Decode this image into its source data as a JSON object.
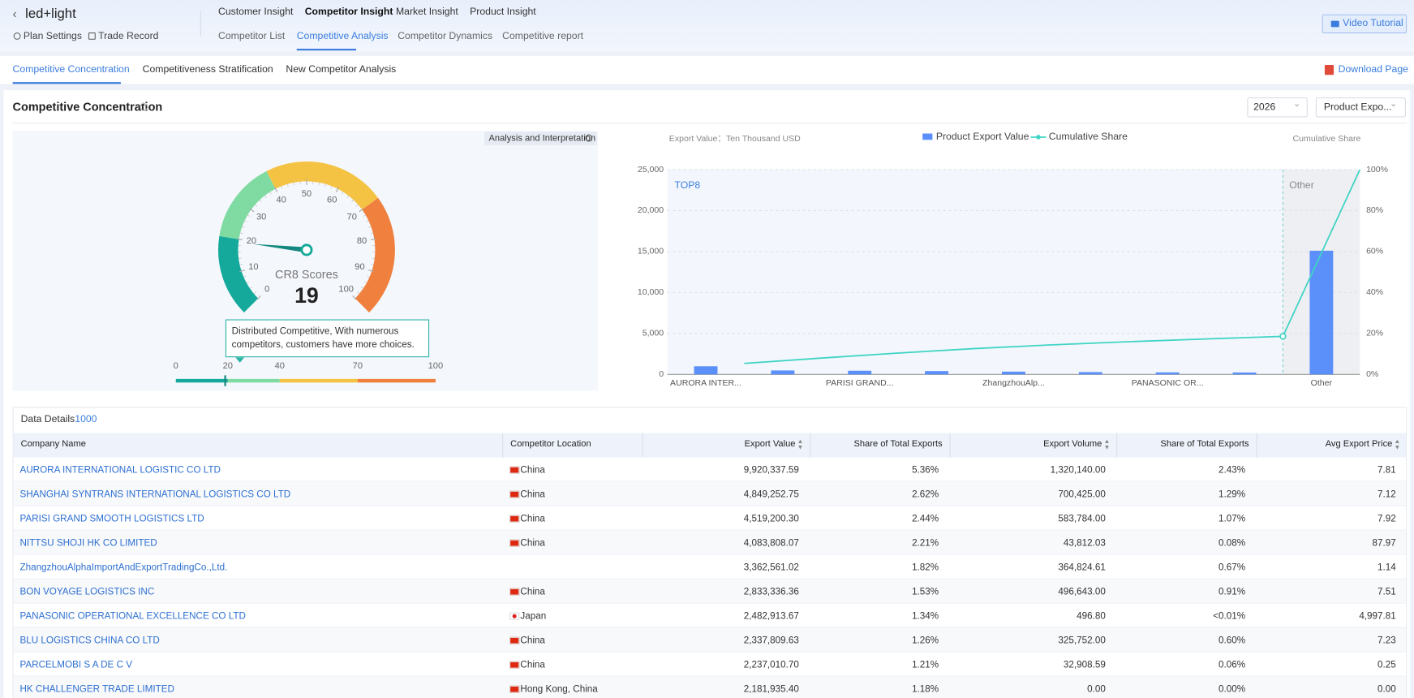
{
  "header": {
    "title": "led+light",
    "links": [
      "Plan Settings",
      "Trade Record"
    ],
    "nav": [
      "Customer Insight",
      "Competitor Insight",
      "Market Insight",
      "Product Insight"
    ],
    "subnav": [
      "Competitor List",
      "Competitive Analysis",
      "Competitor Dynamics",
      "Competitive report"
    ],
    "video": "Video Tutorial"
  },
  "tabs": [
    "Competitive Concentration",
    "Competitiveness Stratification",
    "New Competitor Analysis"
  ],
  "download": "Download Page",
  "panel": {
    "title": "Competitive Concentration",
    "year": "2026",
    "dimension": "Product Expo..."
  },
  "gauge": {
    "button": "Analysis and Interpretation",
    "label": "CR8 Scores",
    "score": 19,
    "ticks": [
      0,
      10,
      20,
      30,
      40,
      50,
      60,
      70,
      80,
      90,
      100
    ],
    "scale": [
      0,
      20,
      40,
      70,
      100
    ],
    "colors": [
      "#14a99a",
      "#7fdba2",
      "#f5c343",
      "#f0803e"
    ],
    "tooltip": "Distributed Competitive, With numerous competitors, customers have more choices."
  },
  "chart_data": {
    "type": "bar",
    "y_label": "Export Value：Ten Thousand USD",
    "y2_label": "Cumulative Share",
    "annotations": [
      "TOP8",
      "Other"
    ],
    "categories": [
      "AURORA INTER...",
      null,
      "PARISI GRAND...",
      null,
      "ZhangzhouAlp...",
      null,
      "PANASONIC OR...",
      null,
      "Other"
    ],
    "series": [
      {
        "name": "Product Export Value",
        "color": "#5b8ff9",
        "values": [
          992.03,
          484.93,
          451.92,
          408.38,
          336.26,
          283.33,
          248.29,
          233.78,
          15100
        ]
      },
      {
        "name": "Cumulative Share",
        "color": "#3fd4c4",
        "type": "line",
        "axis": "y2",
        "values": [
          5.36,
          7.98,
          10.42,
          12.63,
          14.45,
          15.98,
          17.32,
          18.58,
          100
        ]
      }
    ],
    "ylim": [
      0,
      25000
    ],
    "yticks": [
      0,
      {
        "value": 5000,
        "label": "5,000"
      },
      {
        "value": 10000,
        "label": "10,000"
      },
      {
        "value": 15000,
        "label": "15,000"
      },
      {
        "value": 20000,
        "label": "20,000"
      },
      {
        "value": 25000,
        "label": "25,000"
      }
    ],
    "y2lim": [
      0,
      100
    ],
    "y2ticks": [
      {
        "value": 0,
        "label": "0%"
      },
      {
        "value": 20,
        "label": "20%"
      },
      {
        "value": 40,
        "label": "40%"
      },
      {
        "value": 60,
        "label": "60%"
      },
      {
        "value": 80,
        "label": "80%"
      },
      {
        "value": 100,
        "label": "100%"
      }
    ],
    "grid": true
  },
  "table": {
    "title": "Data Details",
    "count": 1000,
    "columns": [
      "Company Name",
      "Competitor Location",
      "Export Value",
      "Share of Total Exports",
      "Export Volume",
      "Share of Total Exports",
      "Avg Export Price"
    ],
    "rows": [
      [
        "AURORA INTERNATIONAL LOGISTIC CO LTD",
        "China",
        "9,920,337.59",
        "5.36%",
        "1,320,140.00",
        "2.43%",
        "7.81"
      ],
      [
        "SHANGHAI SYNTRANS INTERNATIONAL LOGISTICS CO LTD",
        "China",
        "4,849,252.75",
        "2.62%",
        "700,425.00",
        "1.29%",
        "7.12"
      ],
      [
        "PARISI GRAND SMOOTH LOGISTICS LTD",
        "China",
        "4,519,200.30",
        "2.44%",
        "583,784.00",
        "1.07%",
        "7.92"
      ],
      [
        "NITTSU SHOJI HK CO LIMITED",
        "China",
        "4,083,808.07",
        "2.21%",
        "43,812.03",
        "0.08%",
        "87.97"
      ],
      [
        "ZhangzhouAlphaImportAndExportTradingCo.,Ltd.",
        null,
        "3,362,561.02",
        "1.82%",
        "364,824.61",
        "0.67%",
        "1.14"
      ],
      [
        "BON VOYAGE LOGISTICS INC",
        "China",
        "2,833,336.36",
        "1.53%",
        "496,643.00",
        "0.91%",
        "7.51"
      ],
      [
        "PANASONIC OPERATIONAL EXCELLENCE CO LTD",
        "Japan",
        "2,482,913.67",
        "1.34%",
        "496.80",
        "<0.01%",
        "4,997.81"
      ],
      [
        "BLU LOGISTICS CHINA CO LTD",
        "China",
        "2,337,809.63",
        "1.26%",
        "325,752.00",
        "0.60%",
        "7.23"
      ],
      [
        "PARCELMOBI S A DE C V",
        "China",
        "2,237,010.70",
        "1.21%",
        "32,908.59",
        "0.06%",
        "0.25"
      ],
      [
        "HK CHALLENGER TRADE LIMITED",
        "Hong Kong, China",
        "2,181,935.40",
        "1.18%",
        "0.00",
        "0.00%",
        "0.00"
      ]
    ]
  }
}
